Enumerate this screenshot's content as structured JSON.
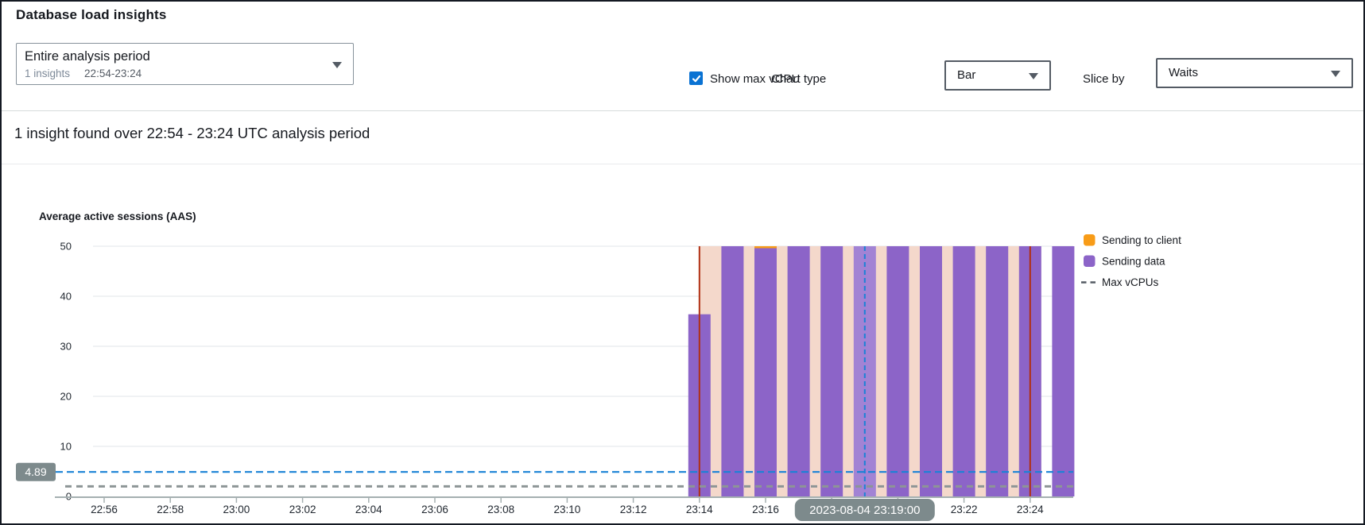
{
  "header": {
    "title": "Database load insights",
    "period_selector": {
      "label": "Entire analysis period",
      "insights_count": "1 insights",
      "range": "22:54-23:24"
    },
    "show_max_vcpu": {
      "label": "Show max vCPU",
      "checked": true
    },
    "chart_type": {
      "label": "Chart type",
      "value": "Bar"
    },
    "slice_by": {
      "label": "Slice by",
      "value": "Waits"
    }
  },
  "insight_summary": "1 insight found over 22:54 - 23:24 UTC analysis period",
  "colors": {
    "accent_blue": "#0972d3",
    "crosshair_blue": "#1a82d6",
    "bar_purple": "#8c64c8",
    "bar_purple_highlight": "#a283d4",
    "orange": "#f89c18",
    "insight_red": "#b02f12",
    "region_pink": "#f4d8cb",
    "badge_gray": "#7d8a8c",
    "grid": "#ebeef0",
    "axis": "#a5b0b1",
    "text_dark": "#212830",
    "text_muted": "#687078",
    "legend_dash": "#545b64"
  },
  "chart_data": {
    "type": "bar",
    "title": "Average active sessions (AAS)",
    "ylabel": "Average active sessions (AAS)",
    "ylim": [
      0,
      50
    ],
    "y_ticks": [
      0,
      10,
      20,
      30,
      40,
      50
    ],
    "x_tick_labels": [
      "22:56",
      "22:58",
      "23:00",
      "23:02",
      "23:04",
      "23:06",
      "23:08",
      "23:10",
      "23:12",
      "23:14",
      "23:16",
      "23:18",
      "23:20",
      "23:22",
      "23:24"
    ],
    "grid": true,
    "legend_position": "right",
    "series_legend": [
      {
        "name": "Sending to client",
        "swatch": "box",
        "color_key": "orange"
      },
      {
        "name": "Sending data",
        "swatch": "box",
        "color_key": "bar_purple"
      },
      {
        "name": "Max vCPUs",
        "swatch": "dashed-line",
        "color_key": "legend_dash"
      }
    ],
    "bars": [
      {
        "time": "23:14",
        "value": 36.4,
        "clipped": false
      },
      {
        "time": "23:15",
        "value": 50,
        "clipped": true
      },
      {
        "time": "23:16",
        "value": 50,
        "clipped": true,
        "top_series": "Sending to client"
      },
      {
        "time": "23:17",
        "value": 50,
        "clipped": true
      },
      {
        "time": "23:18",
        "value": 50,
        "clipped": true
      },
      {
        "time": "23:19",
        "value": 50,
        "clipped": true,
        "highlighted": true
      },
      {
        "time": "23:20",
        "value": 50,
        "clipped": true
      },
      {
        "time": "23:21",
        "value": 50,
        "clipped": true
      },
      {
        "time": "23:22",
        "value": 50,
        "clipped": true
      },
      {
        "time": "23:23",
        "value": 50,
        "clipped": true
      },
      {
        "time": "23:24",
        "value": 50,
        "clipped": true
      },
      {
        "time": "23:25",
        "value": 50,
        "clipped": true
      }
    ],
    "max_vcpus_value": 2,
    "aas_reference": {
      "value": 4.89,
      "label": "4.89"
    },
    "crosshair": {
      "time": "23:19",
      "label": "2023-08-04 23:19:00"
    },
    "insight_region": {
      "start": "23:14",
      "end": "23:24"
    }
  }
}
